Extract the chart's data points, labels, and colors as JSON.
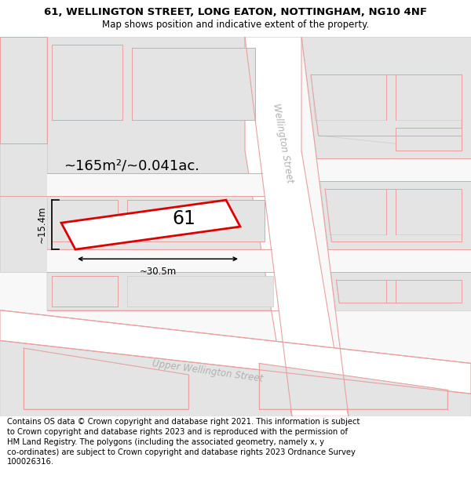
{
  "title_line1": "61, WELLINGTON STREET, LONG EATON, NOTTINGHAM, NG10 4NF",
  "title_line2": "Map shows position and indicative extent of the property.",
  "footer_text": "Contains OS data © Crown copyright and database right 2021. This information is subject to Crown copyright and database rights 2023 and is reproduced with the permission of HM Land Registry. The polygons (including the associated geometry, namely x, y co-ordinates) are subject to Crown copyright and database rights 2023 Ordnance Survey 100026316.",
  "map_bg": "#f8f8f8",
  "road_color": "#ffffff",
  "cadastral_color": "#e8a0a0",
  "building_fill": "#e4e4e4",
  "building_edge": "#cccccc",
  "highlighted_fill": "#ffffff",
  "highlighted_edge": "#dd0000",
  "street_label1": "Wellington Street",
  "street_label2": "Upper Wellington Street",
  "area_label": "~165m²/~0.041ac.",
  "number_label": "61",
  "dim_width": "~30.5m",
  "dim_height": "~15.4m",
  "title_fontsize": 9.5,
  "subtitle_fontsize": 8.5,
  "footer_fontsize": 7.2,
  "street_label_fontsize": 8.5,
  "area_label_fontsize": 13,
  "number_fontsize": 17
}
